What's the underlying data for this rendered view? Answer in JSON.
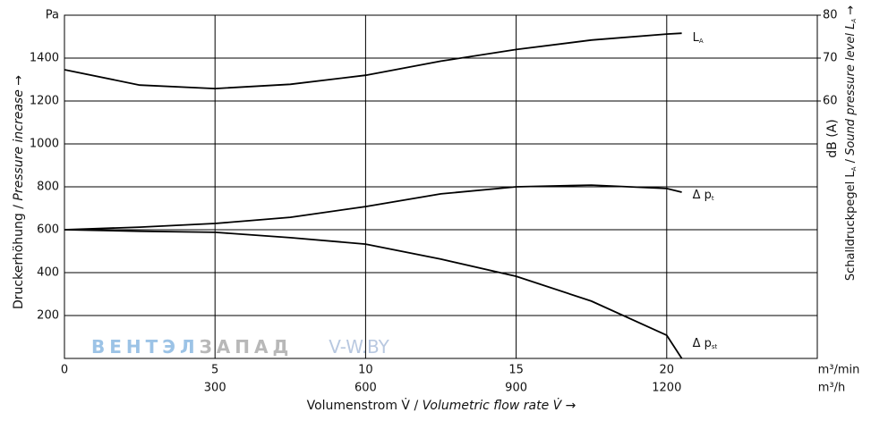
{
  "chart_data": {
    "type": "line",
    "x": [
      0,
      2.5,
      5,
      7.5,
      10,
      12.5,
      15,
      17.5,
      20,
      20.5
    ],
    "series": [
      {
        "name": "L",
        "subscript": "A",
        "axis": "y2",
        "color": "#000000",
        "values": [
          67.3,
          63.7,
          62.9,
          63.9,
          66.0,
          69.3,
          72.0,
          74.2,
          75.6,
          75.8
        ]
      },
      {
        "name": "Δ p",
        "subscript": "t",
        "color": "#000000",
        "values": [
          600,
          612,
          629,
          658,
          708,
          767,
          800,
          808,
          792,
          775
        ]
      },
      {
        "name": "Δ p",
        "subscript": "st",
        "color": "#000000",
        "values": [
          600,
          593,
          588,
          563,
          533,
          463,
          383,
          267,
          108,
          0
        ]
      }
    ],
    "xlim": [
      0,
      25
    ],
    "xticks": [
      0,
      5,
      10,
      15,
      20
    ],
    "x_unit": "m³/min",
    "x2lim": [
      0,
      1500
    ],
    "x2ticks": [
      300,
      600,
      900,
      1200
    ],
    "x2_unit": "m³/h",
    "ylim": [
      0,
      1600
    ],
    "yticks": [
      200,
      400,
      600,
      800,
      1000,
      1200,
      1400
    ],
    "y_unit": "Pa",
    "y2lim": [
      0,
      80
    ],
    "y2ticks": [
      60,
      70,
      80
    ],
    "y2_unit": "dB (A)",
    "x_label": [
      "Volumenstrom V̇ / ",
      "Volumetric flow rate V̇ →"
    ],
    "y_label": [
      "Druckerhöhung / ",
      "Pressure increase →"
    ],
    "y2_label": [
      "Schalldruckpegel L",
      "A",
      " / ",
      "Sound pressure level L",
      "A",
      " →"
    ],
    "watermark": [
      "ВЕНТЭЛ",
      "ЗАПАД",
      "V-W.BY"
    ],
    "grid": true
  }
}
